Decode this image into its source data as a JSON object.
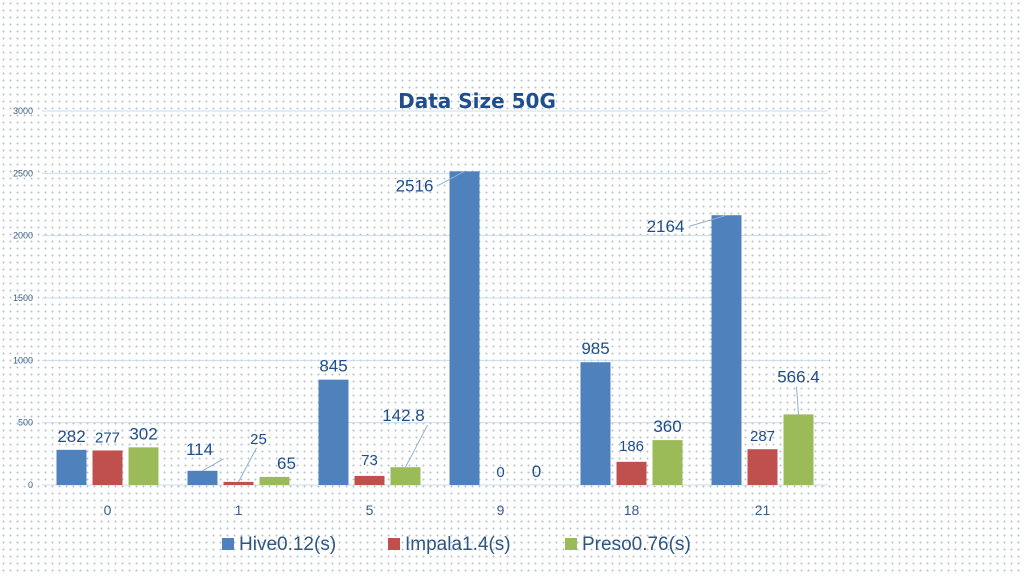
{
  "chart_data": {
    "type": "bar",
    "title": "Data Size 50G",
    "xlabel": "",
    "ylabel": "",
    "ylim": [
      0,
      3000
    ],
    "yticks": [
      0,
      500,
      1000,
      1500,
      2000,
      2500,
      3000
    ],
    "categories": [
      "0",
      "1",
      "5",
      "9",
      "18",
      "21"
    ],
    "series": [
      {
        "name": "Hive0.12(s)",
        "color": "#4f81bd",
        "values": [
          282,
          114,
          845,
          2516,
          985,
          2164
        ]
      },
      {
        "name": "Impala1.4(s)",
        "color": "#c0504d",
        "values": [
          277,
          25,
          73,
          0,
          186,
          287
        ]
      },
      {
        "name": "Preso0.76(s)",
        "color": "#9bbb59",
        "values": [
          302,
          65,
          142.8,
          0,
          360,
          566.4
        ]
      }
    ],
    "grid": true,
    "legend": "bottom"
  }
}
